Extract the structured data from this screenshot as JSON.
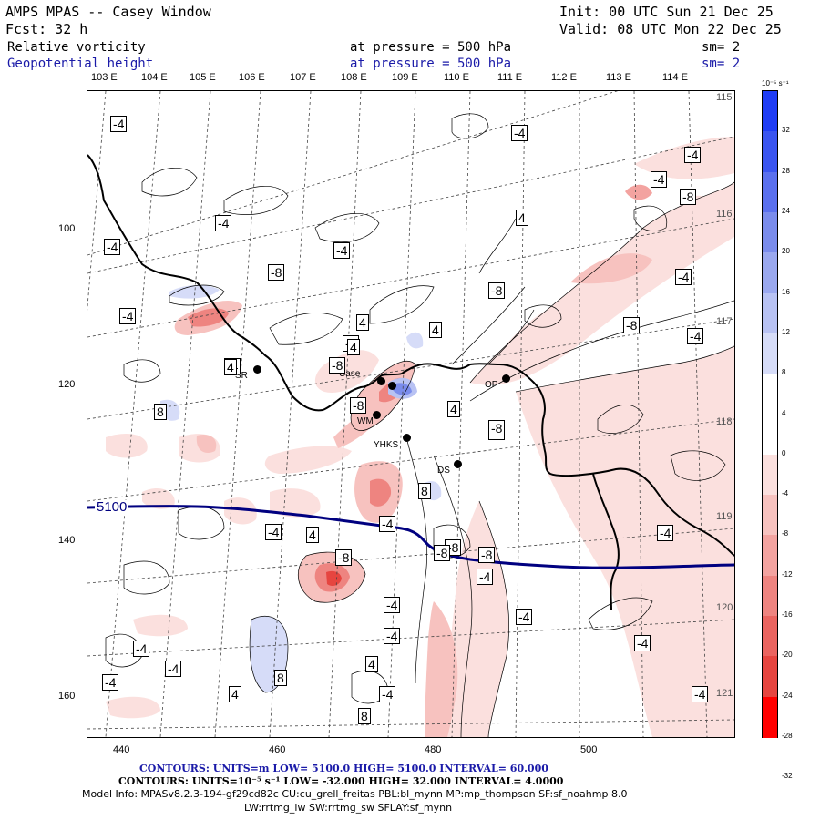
{
  "header": {
    "model_title": "AMPS MPAS -- Casey Window",
    "init_label": "Init: 00 UTC Sun 21 Dec 25",
    "fcst_label": "Fcst:   32 h",
    "valid_label": "Valid: 08 UTC Mon 22 Dec 25",
    "field1_name": "Relative vorticity",
    "field1_level": "at pressure =  500 hPa",
    "field1_sm": "sm= 2",
    "field2_name": "Geopotential height",
    "field2_level": "at pressure =  500 hPa",
    "field2_sm": "sm= 2"
  },
  "map": {
    "longitude_labels": [
      "103 E",
      "104 E",
      "105 E",
      "106 E",
      "107 E",
      "108 E",
      "109 E",
      "110 E",
      "111 E",
      "112 E",
      "113 E",
      "114 E"
    ],
    "right_longitude_labels": [
      "115 E",
      "116 E",
      "117 E",
      "118 E",
      "119 E",
      "120 E",
      "121 E"
    ],
    "y_axis_labels": [
      "100",
      "120",
      "140",
      "160"
    ],
    "x_axis_labels": [
      "440",
      "460",
      "480",
      "500"
    ],
    "height_contour_label": "5100",
    "vorticity_labels": [
      "-4",
      "-4",
      "-4",
      "-4",
      "-4",
      "-4",
      "-4",
      "-4",
      "-4",
      "-4",
      "-4",
      "-4",
      "-4",
      "-4",
      "-4",
      "-4",
      "-4",
      "-4",
      "-4",
      "-4",
      "-4",
      "-4",
      "-4",
      "-4",
      "-4",
      "-4",
      "-8",
      "-8",
      "-8",
      "-8",
      "-8",
      "-8",
      "-8",
      "-8",
      "-8",
      "-8",
      "-8",
      "4",
      "4",
      "4",
      "4",
      "4",
      "4",
      "4",
      "4",
      "4",
      "8",
      "8",
      "8",
      "8"
    ],
    "stations": [
      {
        "name": "SR"
      },
      {
        "name": "Case"
      },
      {
        "name": "WM"
      },
      {
        "name": "YHKS"
      },
      {
        "name": "DS"
      },
      {
        "name": "OP"
      }
    ]
  },
  "colorbar": {
    "unit_label": "10⁻⁵ s⁻¹",
    "tick_labels": [
      "32",
      "28",
      "24",
      "20",
      "16",
      "12",
      "8",
      "4",
      "0",
      "-4",
      "-8",
      "-12",
      "-16",
      "-20",
      "-24",
      "-28",
      "-32"
    ],
    "colors": [
      "#1f3df5",
      "#3a55f0",
      "#5a70ee",
      "#7a8cec",
      "#9aa8ef",
      "#b8c2f3",
      "#d6dcf8",
      "#ffffff",
      "#ffffff",
      "#fbe0de",
      "#f7c2bf",
      "#f3a3a0",
      "#ee8480",
      "#ea6460",
      "#e64540",
      "#ff0000"
    ]
  },
  "footer": {
    "contours1": "CONTOURS:  UNITS=m  LOW=  5100.0        HIGH=  5100.0      INTERVAL=   60.000",
    "contours2": "CONTOURS:  UNITS=10⁻⁵ s⁻¹  LOW= -32.000      HIGH=  32.000      INTERVAL=   4.0000",
    "model_info": "Model Info: MPASv8.2.3-194-gf29cd82c CU:cu_grell_freitas PBL:bl_mynn MP:mp_thompson SF:sf_noahmp 8.0",
    "model_info2": "LW:rrtmg_lw SW:rrtmg_sw SFLAY:sf_mynn"
  }
}
